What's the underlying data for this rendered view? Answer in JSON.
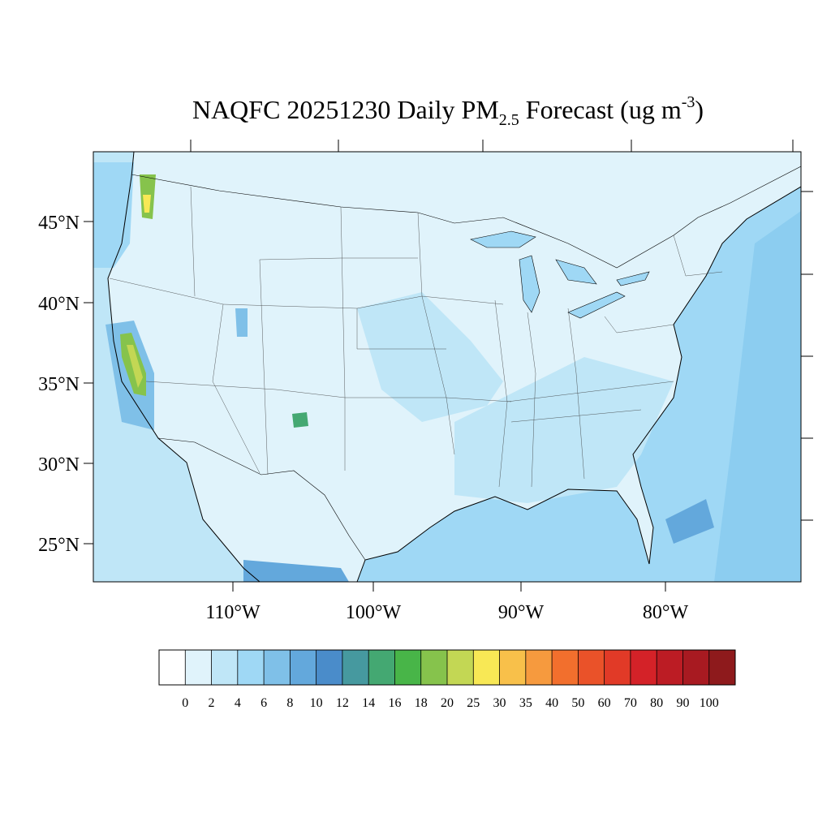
{
  "title": {
    "prefix": "NAQFC 20251230 Daily PM",
    "sub": "2.5",
    "middle": " Forecast (ug m",
    "sup": "-3",
    "suffix": ")"
  },
  "lat_labels": [
    "45°N",
    "40°N",
    "35°N",
    "30°N",
    "25°N"
  ],
  "lon_labels": [
    "110°W",
    "100°W",
    "90°W",
    "80°W"
  ],
  "colorbar": {
    "levels": [
      0,
      2,
      4,
      6,
      8,
      10,
      12,
      14,
      16,
      18,
      20,
      25,
      30,
      35,
      40,
      50,
      60,
      70,
      80,
      90,
      100
    ],
    "colors": [
      "#ffffff",
      "#e0f3fb",
      "#bfe6f7",
      "#9fd8f5",
      "#7fc0e8",
      "#63a8dc",
      "#4a8cca",
      "#46999f",
      "#44a872",
      "#48b548",
      "#86c34c",
      "#c3d754",
      "#f8e855",
      "#f8c04a",
      "#f69a3e",
      "#f26f2d",
      "#ea5229",
      "#e13a27",
      "#d42228",
      "#bc1c24",
      "#a81a21",
      "#8e1a1c"
    ]
  }
}
